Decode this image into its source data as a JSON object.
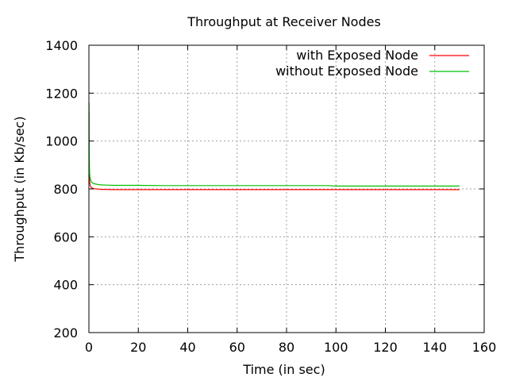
{
  "chart_data": {
    "type": "line",
    "title": "Throughput at Receiver Nodes",
    "xlabel": "Time (in sec)",
    "ylabel": "Throughput (in Kb/sec)",
    "xlim": [
      0,
      160
    ],
    "ylim": [
      200,
      1400
    ],
    "xticks": [
      0,
      20,
      40,
      60,
      80,
      100,
      120,
      140,
      160
    ],
    "yticks": [
      200,
      400,
      600,
      800,
      1000,
      1200,
      1400
    ],
    "grid": true,
    "legend": "top-right",
    "series": [
      {
        "name": "with Exposed Node",
        "color": "#ff0000",
        "x": [
          0.05,
          0.1,
          0.2,
          0.3,
          0.5,
          0.8,
          1,
          1.5,
          2,
          3,
          4,
          5,
          7,
          10,
          15,
          20,
          30,
          40,
          60,
          80,
          100,
          120,
          140,
          150
        ],
        "y": [
          1120,
          900,
          850,
          830,
          815,
          808,
          805,
          803,
          801,
          800,
          799,
          798,
          798,
          797,
          797,
          797,
          797,
          797,
          797,
          797,
          797,
          797,
          797,
          797
        ]
      },
      {
        "name": "without Exposed Node",
        "color": "#00c000",
        "x": [
          0.05,
          0.1,
          0.2,
          0.3,
          0.5,
          0.8,
          1,
          1.5,
          2,
          3,
          4,
          5,
          7,
          10,
          15,
          20,
          30,
          40,
          60,
          80,
          97,
          100,
          120,
          140,
          150
        ],
        "y": [
          1160,
          1000,
          900,
          865,
          845,
          835,
          830,
          825,
          822,
          820,
          818,
          817,
          816,
          815,
          815,
          815,
          814,
          814,
          814,
          814,
          814,
          812,
          812,
          812,
          812
        ]
      }
    ]
  }
}
